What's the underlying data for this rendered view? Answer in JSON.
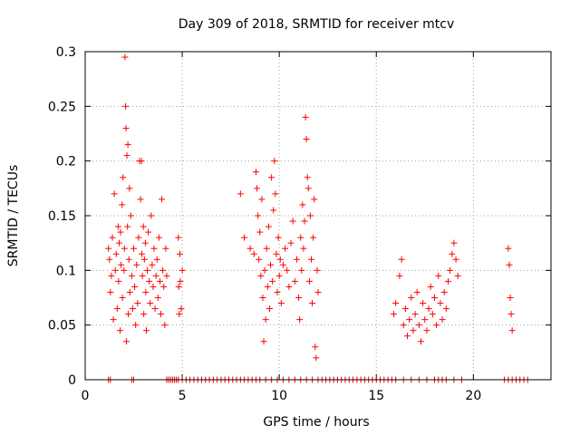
{
  "chart_data": {
    "type": "scatter",
    "title": "Day 309 of 2018, SRMTID for receiver mtcv",
    "xlabel": "GPS time / hours",
    "ylabel": "SRMTID / TECUs",
    "xlim": [
      0,
      24
    ],
    "ylim": [
      0,
      0.3
    ],
    "xticks": [
      0,
      5,
      10,
      15,
      20
    ],
    "yticks": [
      0,
      0.05,
      0.1,
      0.15,
      0.2,
      0.25,
      0.3
    ],
    "xtick_labels": [
      "0",
      "5",
      "10",
      "15",
      "20"
    ],
    "ytick_labels": [
      "0",
      "0.05",
      "0.1",
      "0.15",
      "0.2",
      "0.25",
      "0.3"
    ],
    "grid": true,
    "marker": "+",
    "series_color": "#ff0000",
    "series": [
      {
        "name": "SRMTID",
        "points": [
          [
            1.2,
            0.12
          ],
          [
            1.25,
            0.11
          ],
          [
            1.3,
            0.08
          ],
          [
            1.35,
            0.095
          ],
          [
            1.4,
            0.13
          ],
          [
            1.45,
            0.055
          ],
          [
            1.5,
            0.17
          ],
          [
            1.55,
            0.1
          ],
          [
            1.6,
            0.115
          ],
          [
            1.65,
            0.065
          ],
          [
            1.7,
            0.14
          ],
          [
            1.72,
            0.09
          ],
          [
            1.75,
            0.125
          ],
          [
            1.8,
            0.045
          ],
          [
            1.82,
            0.135
          ],
          [
            1.85,
            0.105
          ],
          [
            1.9,
            0.16
          ],
          [
            1.92,
            0.075
          ],
          [
            1.95,
            0.185
          ],
          [
            2.0,
            0.1
          ],
          [
            2.02,
            0.12
          ],
          [
            2.05,
            0.295
          ],
          [
            2.08,
            0.25
          ],
          [
            2.1,
            0.23
          ],
          [
            2.12,
            0.035
          ],
          [
            2.15,
            0.205
          ],
          [
            2.18,
            0.14
          ],
          [
            2.2,
            0.215
          ],
          [
            2.22,
            0.06
          ],
          [
            2.25,
            0.11
          ],
          [
            2.28,
            0.175
          ],
          [
            2.3,
            0.08
          ],
          [
            2.35,
            0.15
          ],
          [
            2.4,
            0.095
          ],
          [
            2.45,
            0.065
          ],
          [
            2.5,
            0.12
          ],
          [
            2.55,
            0.085
          ],
          [
            2.6,
            0.05
          ],
          [
            2.65,
            0.105
          ],
          [
            2.7,
            0.07
          ],
          [
            2.75,
            0.13
          ],
          [
            2.8,
            0.2
          ],
          [
            2.85,
            0.165
          ],
          [
            2.9,
            0.2
          ],
          [
            2.92,
            0.115
          ],
          [
            2.95,
            0.095
          ],
          [
            3.0,
            0.14
          ],
          [
            3.02,
            0.06
          ],
          [
            3.05,
            0.11
          ],
          [
            3.1,
            0.125
          ],
          [
            3.12,
            0.08
          ],
          [
            3.15,
            0.045
          ],
          [
            3.2,
            0.1
          ],
          [
            3.25,
            0.135
          ],
          [
            3.3,
            0.09
          ],
          [
            3.35,
            0.07
          ],
          [
            3.4,
            0.15
          ],
          [
            3.45,
            0.105
          ],
          [
            3.5,
            0.085
          ],
          [
            3.55,
            0.12
          ],
          [
            3.6,
            0.065
          ],
          [
            3.65,
            0.095
          ],
          [
            3.7,
            0.11
          ],
          [
            3.75,
            0.075
          ],
          [
            3.8,
            0.13
          ],
          [
            3.85,
            0.09
          ],
          [
            3.9,
            0.06
          ],
          [
            3.95,
            0.165
          ],
          [
            4.0,
            0.1
          ],
          [
            4.05,
            0.085
          ],
          [
            4.1,
            0.05
          ],
          [
            4.15,
            0.12
          ],
          [
            4.2,
            0.095
          ],
          [
            4.8,
            0.13
          ],
          [
            4.82,
            0.085
          ],
          [
            4.85,
            0.06
          ],
          [
            4.88,
            0.115
          ],
          [
            4.9,
            0.09
          ],
          [
            4.95,
            0.065
          ],
          [
            5.0,
            0.1
          ],
          [
            8.0,
            0.17
          ],
          [
            8.2,
            0.13
          ],
          [
            8.5,
            0.12
          ],
          [
            8.7,
            0.115
          ],
          [
            8.8,
            0.19
          ],
          [
            8.85,
            0.175
          ],
          [
            8.9,
            0.15
          ],
          [
            8.95,
            0.11
          ],
          [
            9.0,
            0.135
          ],
          [
            9.05,
            0.095
          ],
          [
            9.1,
            0.165
          ],
          [
            9.15,
            0.075
          ],
          [
            9.2,
            0.035
          ],
          [
            9.25,
            0.1
          ],
          [
            9.3,
            0.055
          ],
          [
            9.35,
            0.12
          ],
          [
            9.4,
            0.085
          ],
          [
            9.45,
            0.14
          ],
          [
            9.5,
            0.065
          ],
          [
            9.55,
            0.105
          ],
          [
            9.6,
            0.185
          ],
          [
            9.65,
            0.09
          ],
          [
            9.7,
            0.155
          ],
          [
            9.75,
            0.2
          ],
          [
            9.8,
            0.17
          ],
          [
            9.85,
            0.115
          ],
          [
            9.9,
            0.08
          ],
          [
            9.95,
            0.13
          ],
          [
            10.0,
            0.095
          ],
          [
            10.05,
            0.11
          ],
          [
            10.1,
            0.07
          ],
          [
            10.2,
            0.105
          ],
          [
            10.3,
            0.12
          ],
          [
            10.4,
            0.1
          ],
          [
            10.5,
            0.085
          ],
          [
            10.6,
            0.125
          ],
          [
            10.7,
            0.145
          ],
          [
            10.8,
            0.09
          ],
          [
            10.9,
            0.11
          ],
          [
            11.0,
            0.075
          ],
          [
            11.05,
            0.055
          ],
          [
            11.1,
            0.13
          ],
          [
            11.15,
            0.1
          ],
          [
            11.2,
            0.16
          ],
          [
            11.25,
            0.12
          ],
          [
            11.3,
            0.145
          ],
          [
            11.35,
            0.24
          ],
          [
            11.4,
            0.22
          ],
          [
            11.45,
            0.185
          ],
          [
            11.5,
            0.175
          ],
          [
            11.55,
            0.09
          ],
          [
            11.6,
            0.15
          ],
          [
            11.65,
            0.11
          ],
          [
            11.7,
            0.07
          ],
          [
            11.75,
            0.13
          ],
          [
            11.8,
            0.165
          ],
          [
            11.85,
            0.03
          ],
          [
            11.9,
            0.02
          ],
          [
            11.95,
            0.1
          ],
          [
            12.0,
            0.08
          ],
          [
            15.9,
            0.06
          ],
          [
            16.0,
            0.07
          ],
          [
            16.2,
            0.095
          ],
          [
            16.3,
            0.11
          ],
          [
            16.4,
            0.05
          ],
          [
            16.5,
            0.065
          ],
          [
            16.6,
            0.04
          ],
          [
            16.7,
            0.055
          ],
          [
            16.8,
            0.075
          ],
          [
            16.9,
            0.045
          ],
          [
            17.0,
            0.06
          ],
          [
            17.1,
            0.08
          ],
          [
            17.2,
            0.05
          ],
          [
            17.3,
            0.035
          ],
          [
            17.4,
            0.07
          ],
          [
            17.5,
            0.055
          ],
          [
            17.6,
            0.045
          ],
          [
            17.7,
            0.065
          ],
          [
            17.8,
            0.085
          ],
          [
            17.9,
            0.06
          ],
          [
            18.0,
            0.075
          ],
          [
            18.1,
            0.05
          ],
          [
            18.2,
            0.095
          ],
          [
            18.3,
            0.07
          ],
          [
            18.4,
            0.055
          ],
          [
            18.5,
            0.08
          ],
          [
            18.6,
            0.065
          ],
          [
            18.7,
            0.09
          ],
          [
            18.8,
            0.1
          ],
          [
            18.9,
            0.115
          ],
          [
            19.0,
            0.125
          ],
          [
            19.1,
            0.11
          ],
          [
            19.2,
            0.095
          ],
          [
            21.8,
            0.12
          ],
          [
            21.85,
            0.105
          ],
          [
            21.9,
            0.075
          ],
          [
            21.95,
            0.06
          ],
          [
            22.0,
            0.045
          ]
        ]
      }
    ],
    "zero_value_times": [
      1.2,
      1.3,
      2.4,
      2.5,
      4.2,
      4.3,
      4.4,
      4.5,
      4.6,
      4.7,
      4.8,
      5.0,
      5.2,
      5.4,
      5.6,
      5.8,
      6.0,
      6.2,
      6.4,
      6.6,
      6.8,
      7.0,
      7.2,
      7.4,
      7.6,
      7.8,
      8.0,
      8.2,
      8.4,
      8.6,
      8.8,
      9.0,
      9.3,
      9.6,
      9.9,
      10.2,
      10.5,
      10.8,
      11.1,
      11.4,
      11.7,
      12.0,
      12.2,
      12.4,
      12.6,
      12.8,
      13.0,
      13.2,
      13.4,
      13.6,
      13.8,
      14.0,
      14.2,
      14.4,
      14.6,
      14.8,
      15.0,
      15.2,
      15.4,
      15.6,
      15.8,
      16.0,
      16.4,
      16.8,
      17.2,
      17.6,
      18.0,
      18.2,
      18.4,
      18.6,
      19.0,
      19.4,
      21.6,
      21.8,
      22.0,
      22.2,
      22.4,
      22.6,
      22.8
    ]
  }
}
